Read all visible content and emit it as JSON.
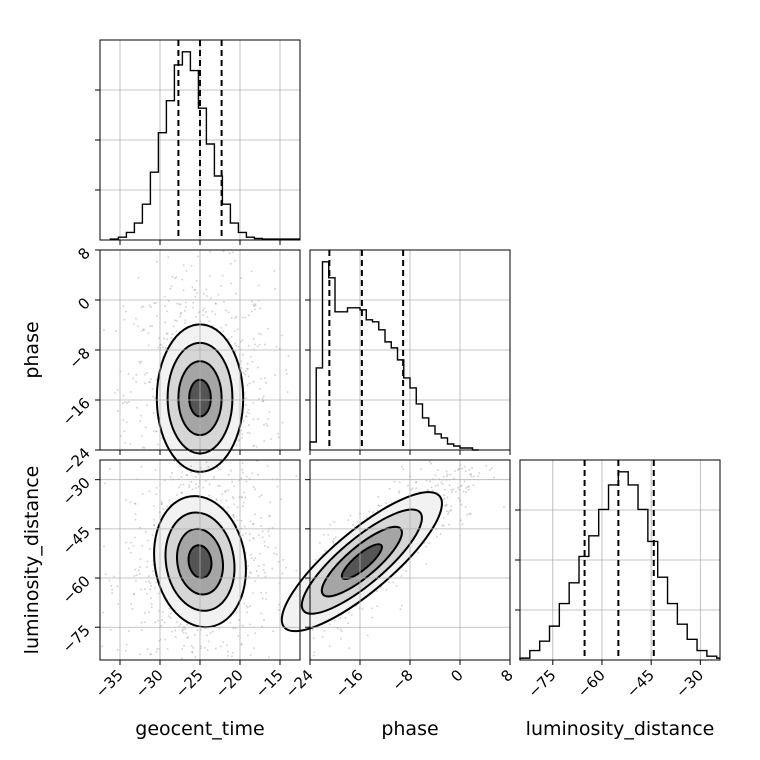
{
  "chart_data": {
    "type": "corner",
    "parameters": [
      "geocent_time",
      "phase",
      "luminosity_distance"
    ],
    "ranges": {
      "geocent_time": [
        -37.5,
        -12.5
      ],
      "phase": [
        -24,
        8
      ],
      "luminosity_distance": [
        -85,
        -24
      ]
    },
    "ticks": {
      "geocent_time": [
        -35,
        -30,
        -25,
        -20,
        -15
      ],
      "phase": [
        -24,
        -16,
        -8,
        0,
        8
      ],
      "luminosity_distance": [
        -75,
        -60,
        -45,
        -30
      ]
    },
    "quantiles": {
      "geocent_time": [
        -27.7,
        -25.0,
        -22.3
      ],
      "phase": [
        -20.9,
        -15.7,
        -9.1
      ],
      "luminosity_distance": [
        -65.3,
        -55.0,
        -44.2
      ]
    },
    "histograms": {
      "geocent_time": {
        "edges": [
          -36.2,
          -35.2,
          -34.2,
          -33.2,
          -32.2,
          -31.2,
          -30.2,
          -29.2,
          -28.2,
          -27.2,
          -26.2,
          -25.2,
          -24.2,
          -23.2,
          -22.2,
          -21.2,
          -20.2,
          -19.2,
          -18.2,
          -17.2,
          -16.2,
          -12.5
        ],
        "counts": [
          0.5,
          1.5,
          4,
          9,
          19,
          36,
          57,
          74,
          93,
          100,
          90,
          70,
          51,
          34,
          19,
          9,
          4,
          1.5,
          0.8,
          0.5,
          0.5
        ]
      },
      "phase": {
        "edges": [
          -24,
          -23,
          -22,
          -21,
          -20,
          -19,
          -18,
          -17,
          -16,
          -15,
          -14,
          -13,
          -12,
          -11,
          -10,
          -9,
          -8,
          -7,
          -6,
          -5,
          -4,
          -3,
          -2,
          -1,
          0,
          1,
          2,
          3
        ],
        "counts": [
          4,
          41,
          94,
          86,
          69,
          69,
          71,
          71,
          70,
          65,
          64,
          60,
          54,
          51,
          45,
          36,
          31,
          23,
          16,
          12,
          8,
          6,
          3,
          2,
          1,
          1,
          0
        ]
      },
      "luminosity_distance": {
        "edges": [
          -85,
          -82,
          -79,
          -76,
          -73,
          -70,
          -67,
          -64,
          -61,
          -58,
          -55,
          -52,
          -49,
          -46,
          -43,
          -40,
          -37,
          -34,
          -31,
          -28,
          -25,
          -24
        ],
        "counts": [
          1,
          5,
          10,
          18,
          30,
          41,
          55,
          66,
          80,
          93,
          100,
          93,
          80,
          63,
          44,
          30,
          19,
          11,
          5,
          2,
          1
        ]
      }
    },
    "pairs": [
      {
        "x": "geocent_time",
        "y": "phase",
        "correlation": 0.0
      },
      {
        "x": "geocent_time",
        "y": "luminosity_distance",
        "correlation": 0.1
      },
      {
        "x": "phase",
        "y": "luminosity_distance",
        "correlation": 0.9
      }
    ],
    "grid": true
  }
}
